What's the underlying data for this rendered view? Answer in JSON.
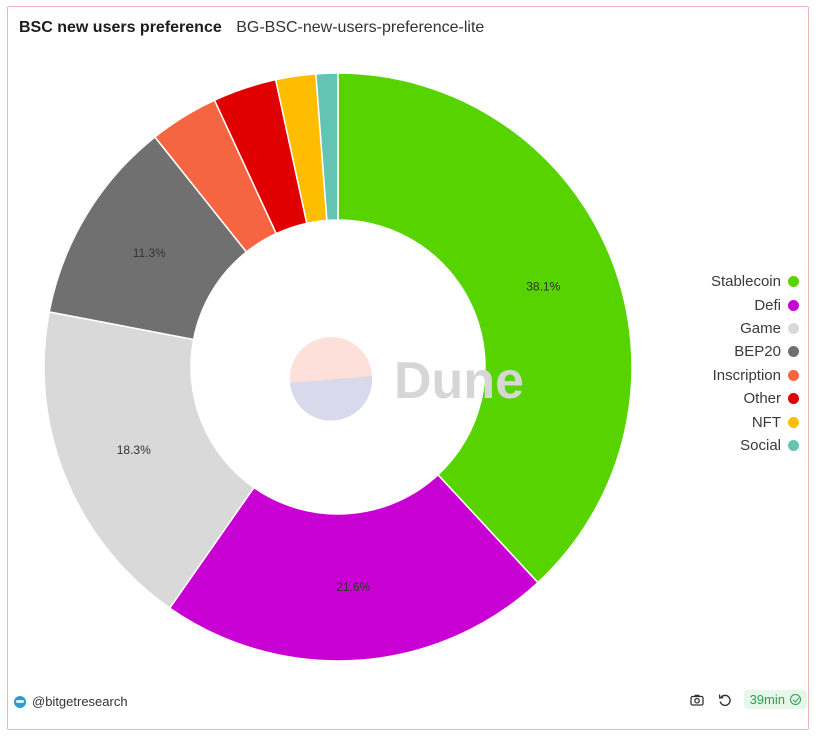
{
  "header": {
    "title": "BSC new users preference",
    "subtitle": "BG-BSC-new-users-preference-lite"
  },
  "watermark": {
    "text": "Dune"
  },
  "footer": {
    "handle": "@bitgetresearch",
    "refresh_age": "39min"
  },
  "chart_data": {
    "type": "pie",
    "donut": true,
    "legend_position": "right",
    "slices": [
      {
        "name": "Stablecoin",
        "value": 38.1,
        "label": "38.1%",
        "color": "#57d300"
      },
      {
        "name": "Defi",
        "value": 21.6,
        "label": "21.6%",
        "color": "#c900d3"
      },
      {
        "name": "Game",
        "value": 18.3,
        "label": "18.3%",
        "color": "#d9d9d9"
      },
      {
        "name": "BEP20",
        "value": 11.3,
        "label": "11.3%",
        "color": "#707070"
      },
      {
        "name": "Inscription",
        "value": 3.8,
        "label": "",
        "color": "#f56542"
      },
      {
        "name": "Other",
        "value": 3.5,
        "label": "",
        "color": "#e00000"
      },
      {
        "name": "NFT",
        "value": 2.2,
        "label": "",
        "color": "#ffbd00"
      },
      {
        "name": "Social",
        "value": 1.2,
        "label": "",
        "color": "#64c4b4"
      }
    ]
  }
}
